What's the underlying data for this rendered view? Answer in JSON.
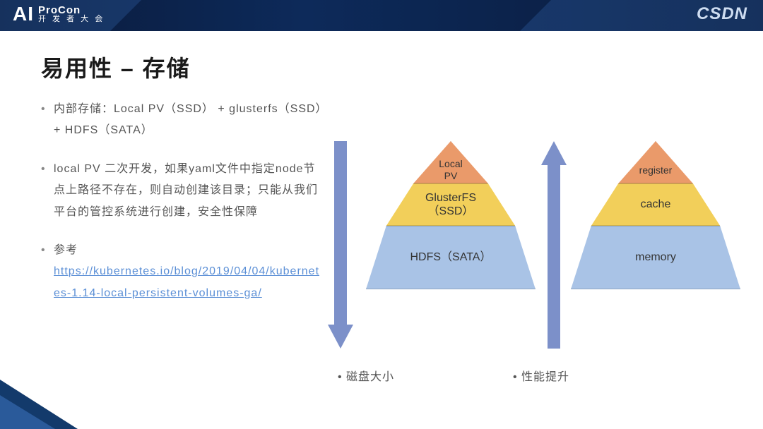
{
  "header": {
    "logo_ai": "AI",
    "logo_en": "ProCon",
    "logo_cn": "开 发 者 大 会",
    "brand_right": "CSDN"
  },
  "title": "易用性 – 存储",
  "bullets": {
    "b1": "内部存储：Local PV（SSD） + glusterfs（SSD）+ HDFS（SATA）",
    "b2": "local PV 二次开发，如果yaml文件中指定node节点上路径不存在，则自动创建该目录；只能从我们平台的管控系统进行创建，安全性保障",
    "b3_prefix": "参考",
    "b3_link": "https://kubernetes.io/blog/2019/04/04/kubernetes-1.14-local-persistent-volumes-ga/"
  },
  "pyramids": {
    "left": {
      "top": "Local\nPV",
      "mid": "GlusterFS\n（SSD）",
      "bot": "HDFS（SATA）"
    },
    "right": {
      "top": "register",
      "mid": "cache",
      "bot": "memory"
    }
  },
  "captions": {
    "down": "•  磁盘大小",
    "up": "•  性能提升"
  },
  "colors": {
    "header_bg_start": "#0a1a3a",
    "header_bg_mid": "#0d2a5a",
    "layer_top": "#ea9a6a",
    "layer_mid": "#f2cf5a",
    "layer_bot": "#a9c3e6",
    "arrow": "#7c90c9",
    "link": "#5b8fd6",
    "text": "#555555",
    "title": "#1a1a1a"
  }
}
